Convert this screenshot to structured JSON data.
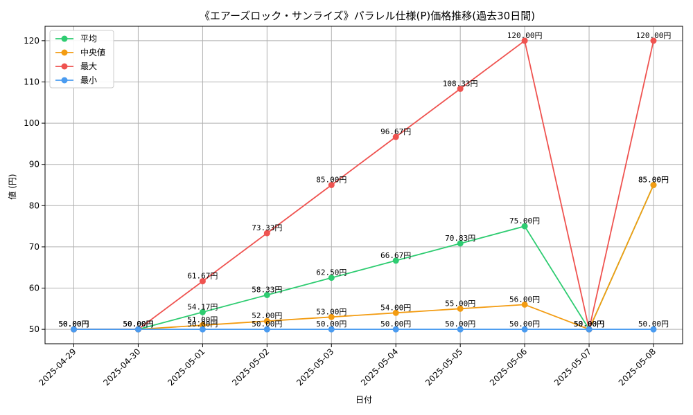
{
  "chart_data": {
    "type": "line",
    "title": "《エアーズロック・サンライズ》パラレル仕様(P)価格推移(過去30日間)",
    "xlabel": "日付",
    "ylabel": "値 (円)",
    "categories": [
      "2025-04-29",
      "2025-04-30",
      "2025-05-01",
      "2025-05-02",
      "2025-05-03",
      "2025-05-04",
      "2025-05-05",
      "2025-05-06",
      "2025-05-07",
      "2025-05-08"
    ],
    "ylim": [
      46.5,
      123.5
    ],
    "yticks": [
      50,
      60,
      70,
      80,
      90,
      100,
      110,
      120
    ],
    "grid": true,
    "legend_position": "top-left",
    "label_suffix": "円",
    "series": [
      {
        "name": "平均",
        "color": "#2ecc71",
        "values": [
          50.0,
          50.0,
          54.17,
          58.33,
          62.5,
          66.67,
          70.83,
          75.0,
          50.0,
          85.0
        ]
      },
      {
        "name": "中央値",
        "color": "#f39c12",
        "values": [
          50.0,
          50.0,
          51.0,
          52.0,
          53.0,
          54.0,
          55.0,
          56.0,
          50.0,
          85.0
        ]
      },
      {
        "name": "最大",
        "color": "#ef5350",
        "values": [
          50.0,
          50.0,
          61.67,
          73.33,
          85.0,
          96.67,
          108.33,
          120.0,
          50.0,
          120.0
        ]
      },
      {
        "name": "最小",
        "color": "#4a9bf0",
        "values": [
          50.0,
          50.0,
          50.0,
          50.0,
          50.0,
          50.0,
          50.0,
          50.0,
          50.0,
          50.0
        ]
      }
    ]
  }
}
